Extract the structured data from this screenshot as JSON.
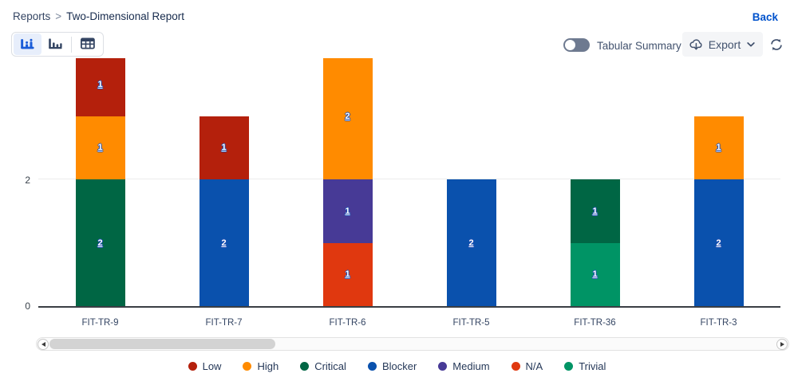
{
  "header": {
    "breadcrumb": [
      "Reports",
      "Two-Dimensional Report"
    ],
    "breadcrumb_separator": ">",
    "back_label": "Back"
  },
  "toolbar": {
    "chart_type_buttons": [
      "stacked-bar-chart",
      "grouped-bar-chart",
      "table-view"
    ],
    "selected_chart_type": "stacked-bar-chart",
    "tabular_summary_label": "Tabular Summary",
    "tabular_summary_state": "off",
    "export_label": "Export",
    "icons": [
      "cloud-download-icon",
      "chevron-down-icon",
      "refresh-icon"
    ]
  },
  "colors": {
    "accent_blue": "#0052cc",
    "navy_text": "#344563",
    "toolbar_icon": "#42526e",
    "button_bg": "#f4f5f7",
    "axis_line": "#3a3e44",
    "gridline": "#ececec"
  },
  "chart_data": {
    "type": "bar",
    "stacked": true,
    "title": "",
    "xlabel": "",
    "ylabel": "",
    "categories": [
      "FIT-TR-9",
      "FIT-TR-7",
      "FIT-TR-6",
      "FIT-TR-5",
      "FIT-TR-36",
      "FIT-TR-3"
    ],
    "series": [
      {
        "name": "Low",
        "color": "#b4200c",
        "values": [
          1,
          1,
          0,
          0,
          0,
          0
        ]
      },
      {
        "name": "High",
        "color": "#ff8b00",
        "values": [
          1,
          0,
          2,
          0,
          0,
          1
        ]
      },
      {
        "name": "Critical",
        "color": "#006644",
        "values": [
          2,
          0,
          0,
          0,
          1,
          0
        ]
      },
      {
        "name": "Blocker",
        "color": "#0a51ad",
        "values": [
          0,
          2,
          0,
          2,
          0,
          2
        ]
      },
      {
        "name": "Medium",
        "color": "#473a96",
        "values": [
          0,
          0,
          1,
          0,
          0,
          0
        ]
      },
      {
        "name": "N/A",
        "color": "#e0380f",
        "values": [
          0,
          0,
          1,
          0,
          0,
          0
        ]
      },
      {
        "name": "Trivial",
        "color": "#009465",
        "values": [
          0,
          0,
          0,
          0,
          1,
          0
        ]
      }
    ],
    "bars": [
      {
        "category": "FIT-TR-9",
        "segments": [
          {
            "series": "Critical",
            "value": 2
          },
          {
            "series": "High",
            "value": 1
          },
          {
            "series": "Low",
            "value": 1
          }
        ]
      },
      {
        "category": "FIT-TR-7",
        "segments": [
          {
            "series": "Blocker",
            "value": 2
          },
          {
            "series": "Low",
            "value": 1
          }
        ]
      },
      {
        "category": "FIT-TR-6",
        "segments": [
          {
            "series": "N/A",
            "value": 1
          },
          {
            "series": "Medium",
            "value": 1
          },
          {
            "series": "High",
            "value": 2
          }
        ]
      },
      {
        "category": "FIT-TR-5",
        "segments": [
          {
            "series": "Blocker",
            "value": 2
          }
        ]
      },
      {
        "category": "FIT-TR-36",
        "segments": [
          {
            "series": "Trivial",
            "value": 1
          },
          {
            "series": "Critical",
            "value": 1
          }
        ]
      },
      {
        "category": "FIT-TR-3",
        "segments": [
          {
            "series": "Blocker",
            "value": 2
          },
          {
            "series": "High",
            "value": 1
          }
        ]
      }
    ],
    "yticks": [
      0,
      2
    ],
    "ylim": [
      0,
      4
    ],
    "grid": "horizontal",
    "legend_position": "bottom"
  },
  "legend": {
    "items": [
      {
        "label": "Low",
        "color": "#b4200c"
      },
      {
        "label": "High",
        "color": "#ff8b00"
      },
      {
        "label": "Critical",
        "color": "#006644"
      },
      {
        "label": "Blocker",
        "color": "#0a51ad"
      },
      {
        "label": "Medium",
        "color": "#473a96"
      },
      {
        "label": "N/A",
        "color": "#e0380f"
      },
      {
        "label": "Trivial",
        "color": "#009465"
      }
    ]
  }
}
